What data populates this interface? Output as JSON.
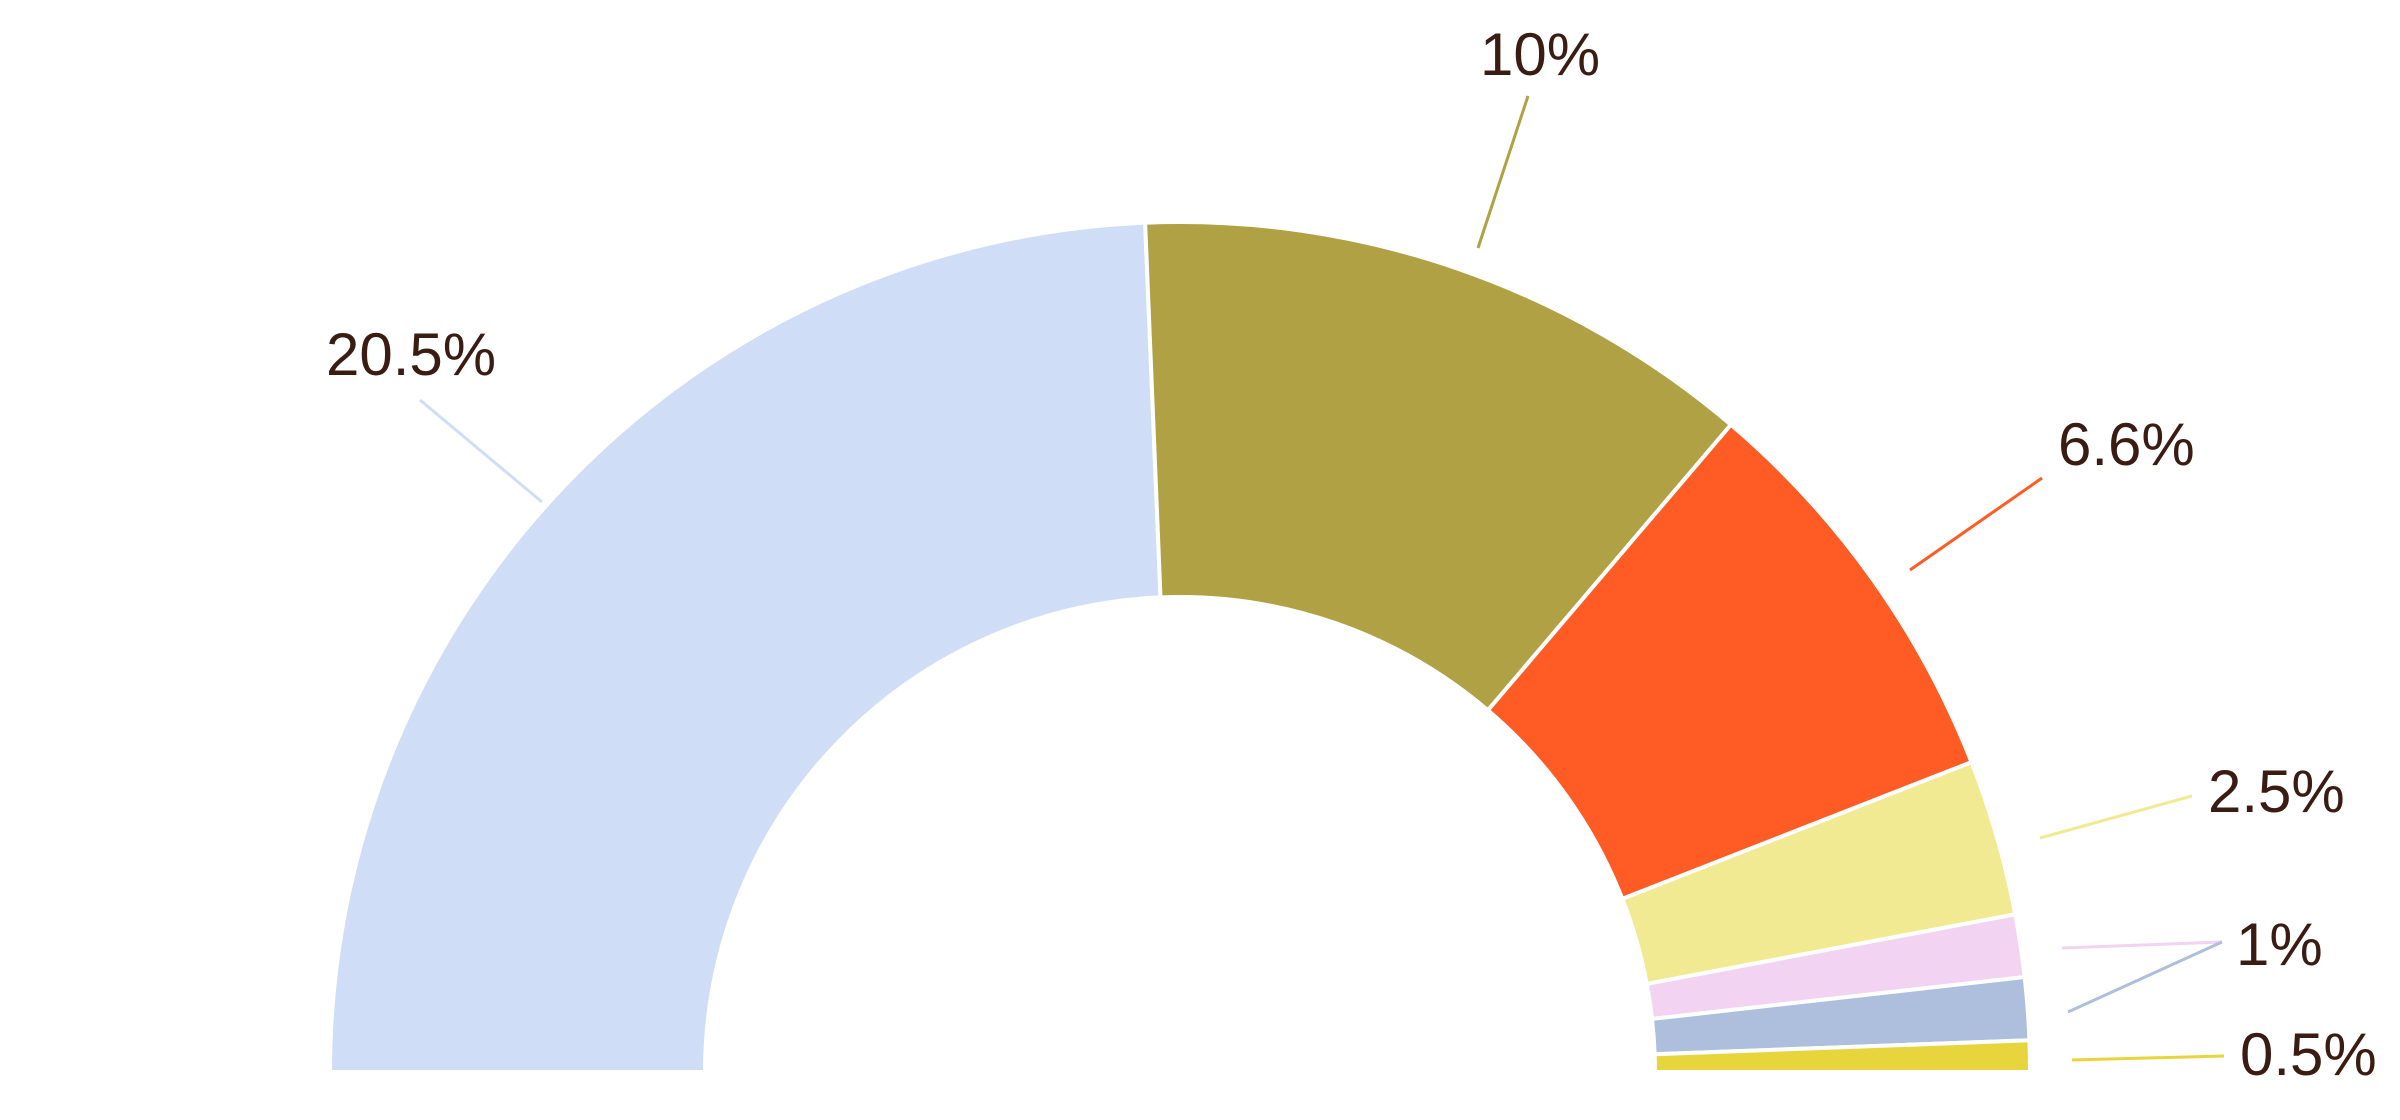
{
  "chart_data": {
    "type": "pie",
    "variant": "half-donut",
    "title": "",
    "legend": "none",
    "slices": [
      {
        "value": 20.5,
        "label": "20.5%",
        "color": "#cfdef6"
      },
      {
        "value": 10,
        "label": "10%",
        "color": "#afa144"
      },
      {
        "value": 6.6,
        "label": "6.6%",
        "color": "#ff5b24"
      },
      {
        "value": 2.5,
        "label": "2.5%",
        "color": "#f2ea93"
      },
      {
        "value": 1,
        "label": "1%",
        "color": "#f3d3f2"
      },
      {
        "value": 1,
        "label": "",
        "color": "#aebfdd"
      },
      {
        "value": 0.5,
        "label": "0.5%",
        "color": "#e8d43d"
      }
    ]
  }
}
